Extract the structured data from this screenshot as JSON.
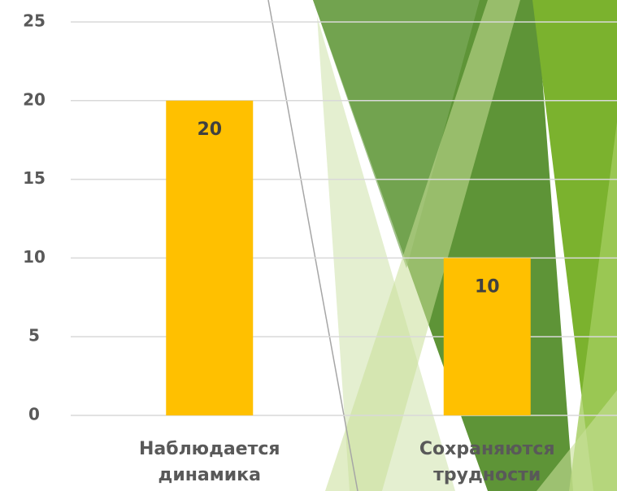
{
  "chart_data": {
    "type": "bar",
    "categories": [
      "Наблюдается динамика",
      "Сохраняются трудности"
    ],
    "values": [
      20,
      10
    ],
    "color": "#FFC000",
    "ylim": [
      0,
      25
    ],
    "yticks": [
      0,
      5,
      10,
      15,
      20,
      25
    ],
    "grid": true
  }
}
